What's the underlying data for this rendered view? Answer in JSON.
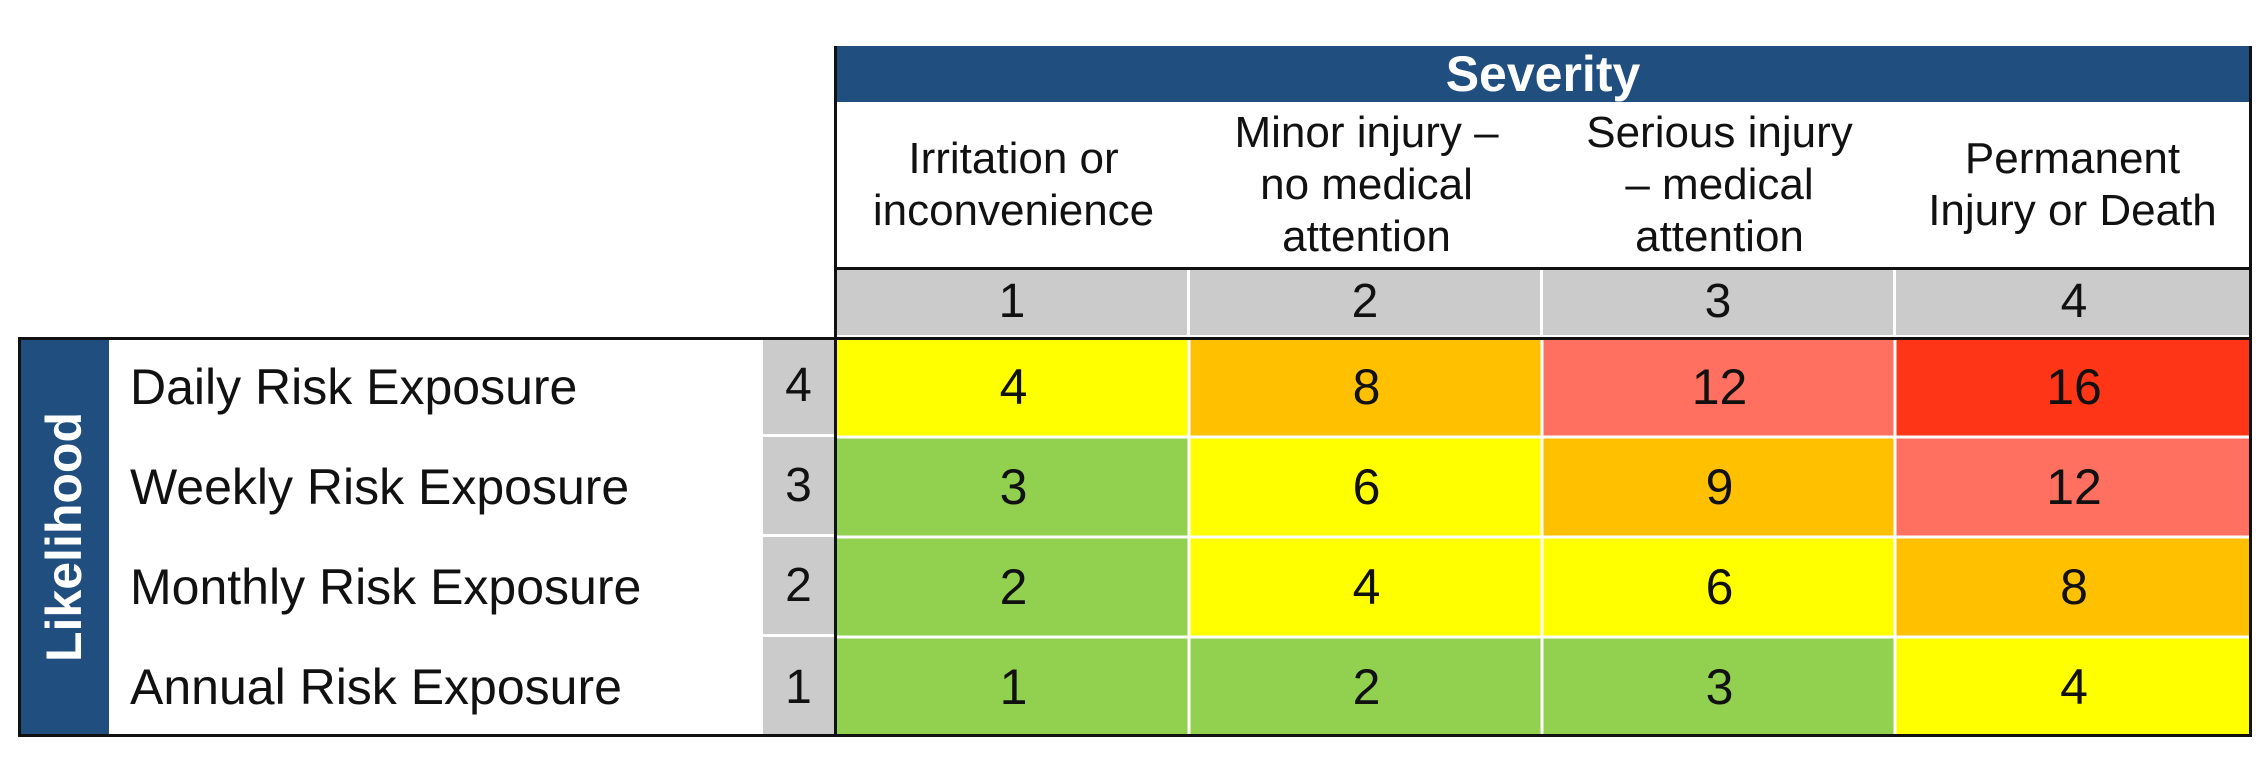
{
  "severity_title": "Severity",
  "likelihood_title": "Likelihood",
  "severity_levels": [
    {
      "label": "Irritation or\ninconvenience",
      "score": "1"
    },
    {
      "label": "Minor injury –\nno medical\nattention",
      "score": "2"
    },
    {
      "label": "Serious injury\n– medical\nattention",
      "score": "3"
    },
    {
      "label": "Permanent\nInjury or Death",
      "score": "4"
    }
  ],
  "likelihood_levels": [
    {
      "label": "Daily Risk Exposure",
      "score": "4"
    },
    {
      "label": "Weekly Risk Exposure",
      "score": "3"
    },
    {
      "label": "Monthly Risk Exposure",
      "score": "2"
    },
    {
      "label": "Annual Risk Exposure",
      "score": "1"
    }
  ],
  "matrix": [
    [
      {
        "value": "4",
        "color": "#ffff00"
      },
      {
        "value": "8",
        "color": "#ffc000"
      },
      {
        "value": "12",
        "color": "#ff7060"
      },
      {
        "value": "16",
        "color": "#ff3518"
      }
    ],
    [
      {
        "value": "3",
        "color": "#92d050"
      },
      {
        "value": "6",
        "color": "#ffff00"
      },
      {
        "value": "9",
        "color": "#ffc000"
      },
      {
        "value": "12",
        "color": "#ff7060"
      }
    ],
    [
      {
        "value": "2",
        "color": "#92d050"
      },
      {
        "value": "4",
        "color": "#ffff00"
      },
      {
        "value": "6",
        "color": "#ffff00"
      },
      {
        "value": "8",
        "color": "#ffc000"
      }
    ],
    [
      {
        "value": "1",
        "color": "#92d050"
      },
      {
        "value": "2",
        "color": "#92d050"
      },
      {
        "value": "3",
        "color": "#92d050"
      },
      {
        "value": "4",
        "color": "#ffff00"
      }
    ]
  ],
  "colors": {
    "header_band": "#1f4e7f",
    "score_gray": "#cbcbcb"
  }
}
